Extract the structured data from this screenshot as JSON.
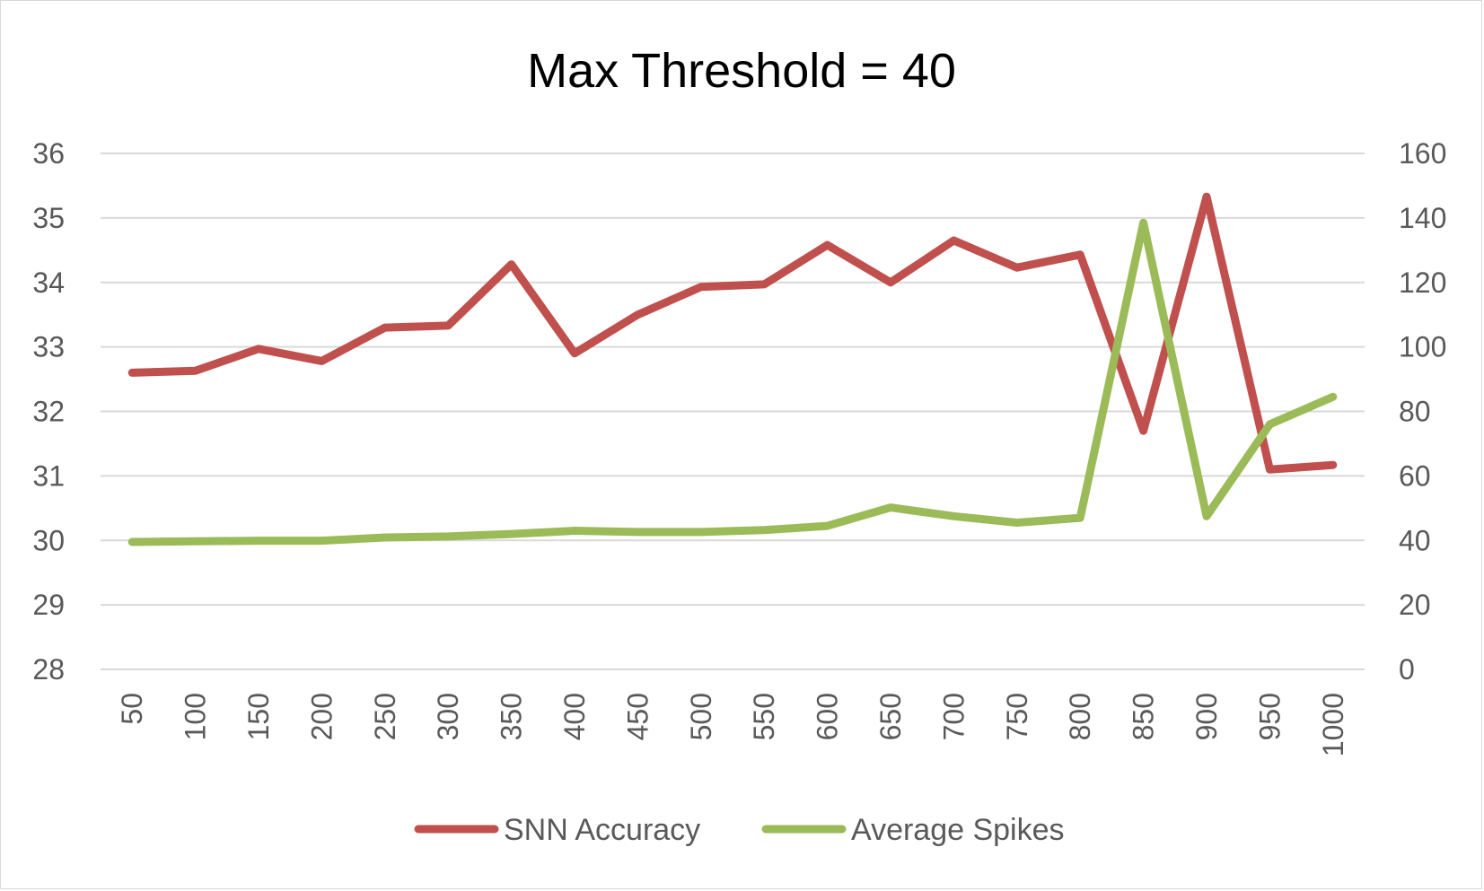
{
  "chart_data": {
    "type": "line",
    "title": "Max Threshold = 40",
    "x": [
      50,
      100,
      150,
      200,
      250,
      300,
      350,
      400,
      450,
      500,
      550,
      600,
      650,
      700,
      750,
      800,
      850,
      900,
      950,
      1000
    ],
    "x_tick_labels": [
      "50",
      "100",
      "150",
      "200",
      "250",
      "300",
      "350",
      "400",
      "450",
      "500",
      "550",
      "600",
      "650",
      "700",
      "750",
      "800",
      "850",
      "900",
      "950",
      "1000"
    ],
    "y_left": {
      "ylim": [
        28,
        36
      ],
      "ticks": [
        "28",
        "29",
        "30",
        "31",
        "32",
        "33",
        "34",
        "35",
        "36"
      ]
    },
    "y_right": {
      "ylim": [
        0,
        160
      ],
      "ticks": [
        "0",
        "20",
        "40",
        "60",
        "80",
        "100",
        "120",
        "140",
        "160"
      ]
    },
    "grid": true,
    "legend_position": "bottom",
    "series": [
      {
        "name": "SNN Accuracy",
        "axis": "left",
        "color": "#c0504d",
        "values": [
          32.6,
          32.63,
          32.97,
          32.78,
          33.3,
          33.33,
          34.28,
          32.9,
          33.5,
          33.93,
          33.97,
          34.58,
          34.0,
          34.65,
          34.23,
          34.43,
          31.7,
          35.33,
          31.1,
          31.17
        ]
      },
      {
        "name": "Average Spikes",
        "axis": "right",
        "color": "#9bbb59",
        "values": [
          39.5,
          39.7,
          39.9,
          39.9,
          40.9,
          41.2,
          42.0,
          43.0,
          42.6,
          42.6,
          43.2,
          44.5,
          50.2,
          47.5,
          45.5,
          47.0,
          138.5,
          47.5,
          76.0,
          84.5
        ]
      }
    ]
  }
}
